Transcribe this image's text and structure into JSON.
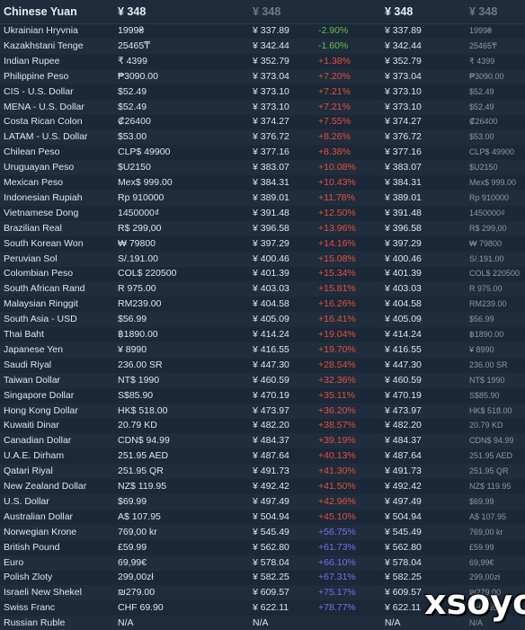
{
  "header": {
    "currency": "Chinese Yuan",
    "col1": "¥ 348",
    "col2": "¥ 348",
    "col4": "¥ 348",
    "col5": "¥ 348"
  },
  "colors": {
    "negative": "#66c04a",
    "low": "#e8503a",
    "high": "#7b6ff0"
  },
  "rows": [
    {
      "name": "Ukrainian Hryvnia",
      "local": "1999₴",
      "cny": "¥ 337.89",
      "diff": "-2.90%",
      "cny2": "¥ 337.89",
      "local2": "1999₴",
      "tone": "negative"
    },
    {
      "name": "Kazakhstani Tenge",
      "local": "25465₸",
      "cny": "¥ 342.44",
      "diff": "-1.60%",
      "cny2": "¥ 342.44",
      "local2": "25465₸",
      "tone": "negative"
    },
    {
      "name": "Indian Rupee",
      "local": "₹ 4399",
      "cny": "¥ 352.79",
      "diff": "+1.38%",
      "cny2": "¥ 352.79",
      "local2": "₹ 4399",
      "tone": "low"
    },
    {
      "name": "Philippine Peso",
      "local": "₱3090.00",
      "cny": "¥ 373.04",
      "diff": "+7.20%",
      "cny2": "¥ 373.04",
      "local2": "₱3090.00",
      "tone": "low"
    },
    {
      "name": "CIS - U.S. Dollar",
      "local": "$52.49",
      "cny": "¥ 373.10",
      "diff": "+7.21%",
      "cny2": "¥ 373.10",
      "local2": "$52.49",
      "tone": "low"
    },
    {
      "name": "MENA - U.S. Dollar",
      "local": "$52.49",
      "cny": "¥ 373.10",
      "diff": "+7.21%",
      "cny2": "¥ 373.10",
      "local2": "$52.49",
      "tone": "low"
    },
    {
      "name": "Costa Rican Colon",
      "local": "₡26400",
      "cny": "¥ 374.27",
      "diff": "+7.55%",
      "cny2": "¥ 374.27",
      "local2": "₡26400",
      "tone": "low"
    },
    {
      "name": "LATAM - U.S. Dollar",
      "local": "$53.00",
      "cny": "¥ 376.72",
      "diff": "+8.26%",
      "cny2": "¥ 376.72",
      "local2": "$53.00",
      "tone": "low"
    },
    {
      "name": "Chilean Peso",
      "local": "CLP$ 49900",
      "cny": "¥ 377.16",
      "diff": "+8.38%",
      "cny2": "¥ 377.16",
      "local2": "CLP$ 49900",
      "tone": "low"
    },
    {
      "name": "Uruguayan Peso",
      "local": "$U2150",
      "cny": "¥ 383.07",
      "diff": "+10.08%",
      "cny2": "¥ 383.07",
      "local2": "$U2150",
      "tone": "low"
    },
    {
      "name": "Mexican Peso",
      "local": "Mex$ 999.00",
      "cny": "¥ 384.31",
      "diff": "+10.43%",
      "cny2": "¥ 384.31",
      "local2": "Mex$ 999.00",
      "tone": "low"
    },
    {
      "name": "Indonesian Rupiah",
      "local": "Rp 910000",
      "cny": "¥ 389.01",
      "diff": "+11.78%",
      "cny2": "¥ 389.01",
      "local2": "Rp 910000",
      "tone": "low"
    },
    {
      "name": "Vietnamese Dong",
      "local": "1450000₫",
      "cny": "¥ 391.48",
      "diff": "+12.50%",
      "cny2": "¥ 391.48",
      "local2": "1450000₫",
      "tone": "low"
    },
    {
      "name": "Brazilian Real",
      "local": "R$ 299,00",
      "cny": "¥ 396.58",
      "diff": "+13.96%",
      "cny2": "¥ 396.58",
      "local2": "R$ 299,00",
      "tone": "low"
    },
    {
      "name": "South Korean Won",
      "local": "₩ 79800",
      "cny": "¥ 397.29",
      "diff": "+14.16%",
      "cny2": "¥ 397.29",
      "local2": "₩ 79800",
      "tone": "low"
    },
    {
      "name": "Peruvian Sol",
      "local": "S/.191.00",
      "cny": "¥ 400.46",
      "diff": "+15.08%",
      "cny2": "¥ 400.46",
      "local2": "S/.191.00",
      "tone": "low"
    },
    {
      "name": "Colombian Peso",
      "local": "COL$ 220500",
      "cny": "¥ 401.39",
      "diff": "+15.34%",
      "cny2": "¥ 401.39",
      "local2": "COL$ 220500",
      "tone": "low"
    },
    {
      "name": "South African Rand",
      "local": "R 975.00",
      "cny": "¥ 403.03",
      "diff": "+15.81%",
      "cny2": "¥ 403.03",
      "local2": "R 975.00",
      "tone": "low"
    },
    {
      "name": "Malaysian Ringgit",
      "local": "RM239.00",
      "cny": "¥ 404.58",
      "diff": "+16.26%",
      "cny2": "¥ 404.58",
      "local2": "RM239.00",
      "tone": "low"
    },
    {
      "name": "South Asia - USD",
      "local": "$56.99",
      "cny": "¥ 405.09",
      "diff": "+16.41%",
      "cny2": "¥ 405.09",
      "local2": "$56.99",
      "tone": "low"
    },
    {
      "name": "Thai Baht",
      "local": "฿1890.00",
      "cny": "¥ 414.24",
      "diff": "+19.04%",
      "cny2": "¥ 414.24",
      "local2": "฿1890.00",
      "tone": "low"
    },
    {
      "name": "Japanese Yen",
      "local": "¥ 8990",
      "cny": "¥ 416.55",
      "diff": "+19.70%",
      "cny2": "¥ 416.55",
      "local2": "¥ 8990",
      "tone": "low"
    },
    {
      "name": "Saudi Riyal",
      "local": "236.00 SR",
      "cny": "¥ 447.30",
      "diff": "+28.54%",
      "cny2": "¥ 447.30",
      "local2": "236.00 SR",
      "tone": "low"
    },
    {
      "name": "Taiwan Dollar",
      "local": "NT$ 1990",
      "cny": "¥ 460.59",
      "diff": "+32.36%",
      "cny2": "¥ 460.59",
      "local2": "NT$ 1990",
      "tone": "low"
    },
    {
      "name": "Singapore Dollar",
      "local": "S$85.90",
      "cny": "¥ 470.19",
      "diff": "+35.11%",
      "cny2": "¥ 470.19",
      "local2": "S$85.90",
      "tone": "low"
    },
    {
      "name": "Hong Kong Dollar",
      "local": "HK$ 518.00",
      "cny": "¥ 473.97",
      "diff": "+36.20%",
      "cny2": "¥ 473.97",
      "local2": "HK$ 518.00",
      "tone": "low"
    },
    {
      "name": "Kuwaiti Dinar",
      "local": "20.79 KD",
      "cny": "¥ 482.20",
      "diff": "+38.57%",
      "cny2": "¥ 482.20",
      "local2": "20.79 KD",
      "tone": "low"
    },
    {
      "name": "Canadian Dollar",
      "local": "CDN$ 94.99",
      "cny": "¥ 484.37",
      "diff": "+39.19%",
      "cny2": "¥ 484.37",
      "local2": "CDN$ 94.99",
      "tone": "low"
    },
    {
      "name": "U.A.E. Dirham",
      "local": "251.95 AED",
      "cny": "¥ 487.64",
      "diff": "+40.13%",
      "cny2": "¥ 487.64",
      "local2": "251.95 AED",
      "tone": "low"
    },
    {
      "name": "Qatari Riyal",
      "local": "251.95 QR",
      "cny": "¥ 491.73",
      "diff": "+41.30%",
      "cny2": "¥ 491.73",
      "local2": "251.95 QR",
      "tone": "low"
    },
    {
      "name": "New Zealand Dollar",
      "local": "NZ$ 119.95",
      "cny": "¥ 492.42",
      "diff": "+41.50%",
      "cny2": "¥ 492.42",
      "local2": "NZ$ 119.95",
      "tone": "low"
    },
    {
      "name": "U.S. Dollar",
      "local": "$69.99",
      "cny": "¥ 497.49",
      "diff": "+42.96%",
      "cny2": "¥ 497.49",
      "local2": "$69.99",
      "tone": "low"
    },
    {
      "name": "Australian Dollar",
      "local": "A$ 107.95",
      "cny": "¥ 504.94",
      "diff": "+45.10%",
      "cny2": "¥ 504.94",
      "local2": "A$ 107.95",
      "tone": "low"
    },
    {
      "name": "Norwegian Krone",
      "local": "769,00 kr",
      "cny": "¥ 545.49",
      "diff": "+56.75%",
      "cny2": "¥ 545.49",
      "local2": "769,00 kr",
      "tone": "high"
    },
    {
      "name": "British Pound",
      "local": "£59.99",
      "cny": "¥ 562.80",
      "diff": "+61.73%",
      "cny2": "¥ 562.80",
      "local2": "£59.99",
      "tone": "high"
    },
    {
      "name": "Euro",
      "local": "69,99€",
      "cny": "¥ 578.04",
      "diff": "+66.10%",
      "cny2": "¥ 578.04",
      "local2": "69,99€",
      "tone": "high"
    },
    {
      "name": "Polish Zloty",
      "local": "299,00zł",
      "cny": "¥ 582.25",
      "diff": "+67.31%",
      "cny2": "¥ 582.25",
      "local2": "299,00zł",
      "tone": "high"
    },
    {
      "name": "Israeli New Shekel",
      "local": "₪279.00",
      "cny": "¥ 609.57",
      "diff": "+75.17%",
      "cny2": "¥ 609.57",
      "local2": "₪279.00",
      "tone": "high"
    },
    {
      "name": "Swiss Franc",
      "local": "CHF 69.90",
      "cny": "¥ 622.11",
      "diff": "+78.77%",
      "cny2": "¥ 622.11",
      "local2": "CHF 69.90",
      "tone": "high"
    },
    {
      "name": "Russian Ruble",
      "local": "N/A",
      "cny": "N/A",
      "diff": "",
      "cny2": "N/A",
      "local2": "N/A",
      "tone": "none"
    }
  ],
  "watermark": "xsoyo"
}
